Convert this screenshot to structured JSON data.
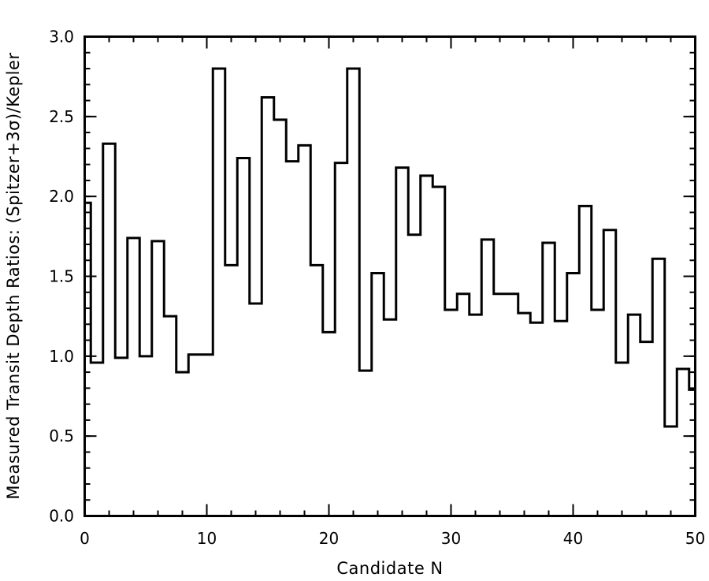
{
  "chart_data": {
    "type": "step",
    "xlabel": "Candidate N",
    "ylabel": "Measured Transit Depth Ratios: (Spitzer+3σ)/Kepler",
    "xlim": [
      0,
      50
    ],
    "ylim": [
      0,
      3.0
    ],
    "x_major_ticks": [
      0,
      10,
      20,
      30,
      40,
      50
    ],
    "y_major_ticks": [
      0.0,
      0.5,
      1.0,
      1.5,
      2.0,
      2.5,
      3.0
    ],
    "x_tick_labels": [
      "0",
      "10",
      "20",
      "30",
      "40",
      "50"
    ],
    "y_tick_labels": [
      "0.0",
      "0.5",
      "1.0",
      "1.5",
      "2.0",
      "2.5",
      "3.0"
    ],
    "x_minor_step": 2,
    "y_minor_step": 0.1,
    "grid": false,
    "line_color": "#000000",
    "x": [
      0,
      1,
      2,
      3,
      4,
      5,
      6,
      7,
      8,
      9,
      10,
      11,
      12,
      13,
      14,
      15,
      16,
      17,
      18,
      19,
      20,
      21,
      22,
      23,
      24,
      25,
      26,
      27,
      28,
      29,
      30,
      31,
      32,
      33,
      34,
      35,
      36,
      37,
      38,
      39,
      40,
      41,
      42,
      43,
      44,
      45,
      46,
      47,
      48,
      49,
      50
    ],
    "values": [
      1.96,
      0.96,
      2.33,
      0.99,
      1.74,
      1.0,
      1.72,
      1.25,
      0.9,
      1.01,
      1.01,
      2.8,
      1.57,
      2.24,
      1.33,
      2.62,
      2.48,
      2.22,
      2.32,
      1.57,
      1.15,
      2.21,
      2.8,
      0.91,
      1.52,
      1.23,
      2.18,
      1.76,
      2.13,
      2.06,
      1.29,
      1.39,
      1.26,
      1.73,
      1.39,
      1.39,
      1.27,
      1.21,
      1.71,
      1.22,
      1.52,
      1.94,
      1.29,
      1.79,
      0.96,
      1.26,
      1.09,
      1.61,
      0.56,
      0.92,
      0.79
    ]
  }
}
